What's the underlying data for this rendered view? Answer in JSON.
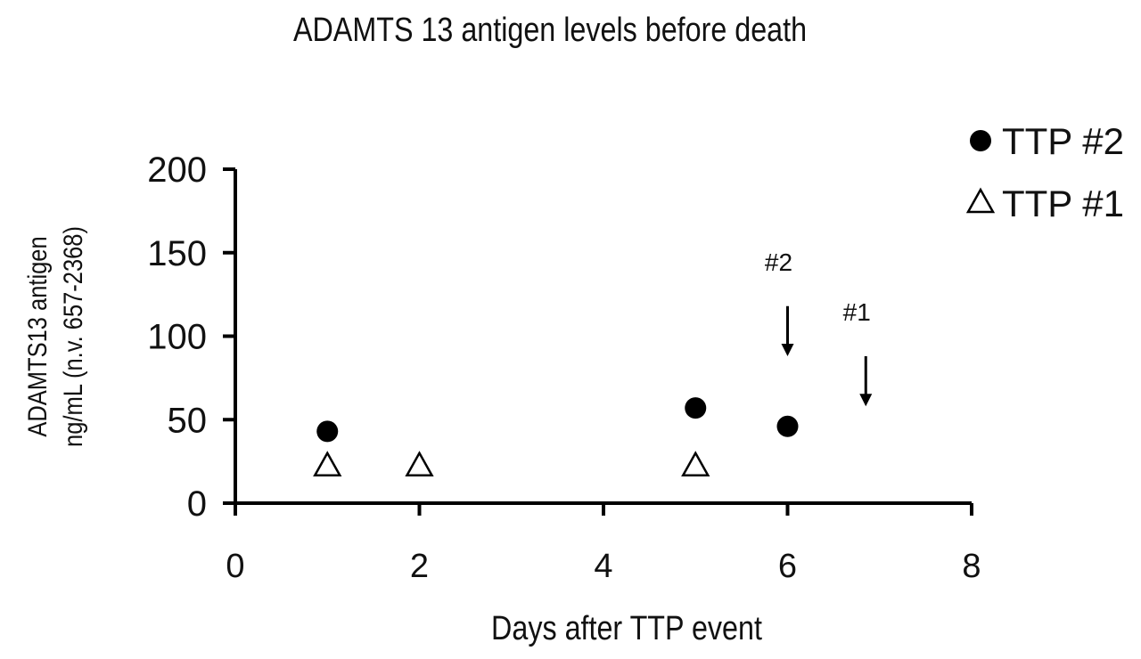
{
  "chart_data": {
    "type": "scatter",
    "title": "ADAMTS 13 antigen levels before death",
    "xlabel": "Days after TTP event",
    "ylabel_line1": "ADAMTS13 antigen",
    "ylabel_line2": "ng/mL (n.v. 657-2368)",
    "xlim": [
      0,
      8
    ],
    "ylim": [
      0,
      200
    ],
    "xticks": [
      0,
      2,
      4,
      6,
      8
    ],
    "yticks": [
      0,
      50,
      100,
      150,
      200
    ],
    "grid": false,
    "legend_position": "top-right",
    "series": [
      {
        "name": "TTP #2",
        "marker": "filled-circle",
        "color": "#000000",
        "x": [
          1,
          5,
          6
        ],
        "y": [
          43,
          57,
          46
        ]
      },
      {
        "name": "TTP #1",
        "marker": "open-triangle",
        "color": "#000000",
        "x": [
          1,
          2,
          5
        ],
        "y": [
          22,
          22,
          22
        ]
      }
    ],
    "annotations": [
      {
        "text": "#2",
        "type": "down-arrow",
        "x": 6.0,
        "y_from": 118,
        "y_to": 88
      },
      {
        "text": "#1",
        "type": "down-arrow",
        "x": 6.85,
        "y_from": 88,
        "y_to": 58
      }
    ]
  }
}
